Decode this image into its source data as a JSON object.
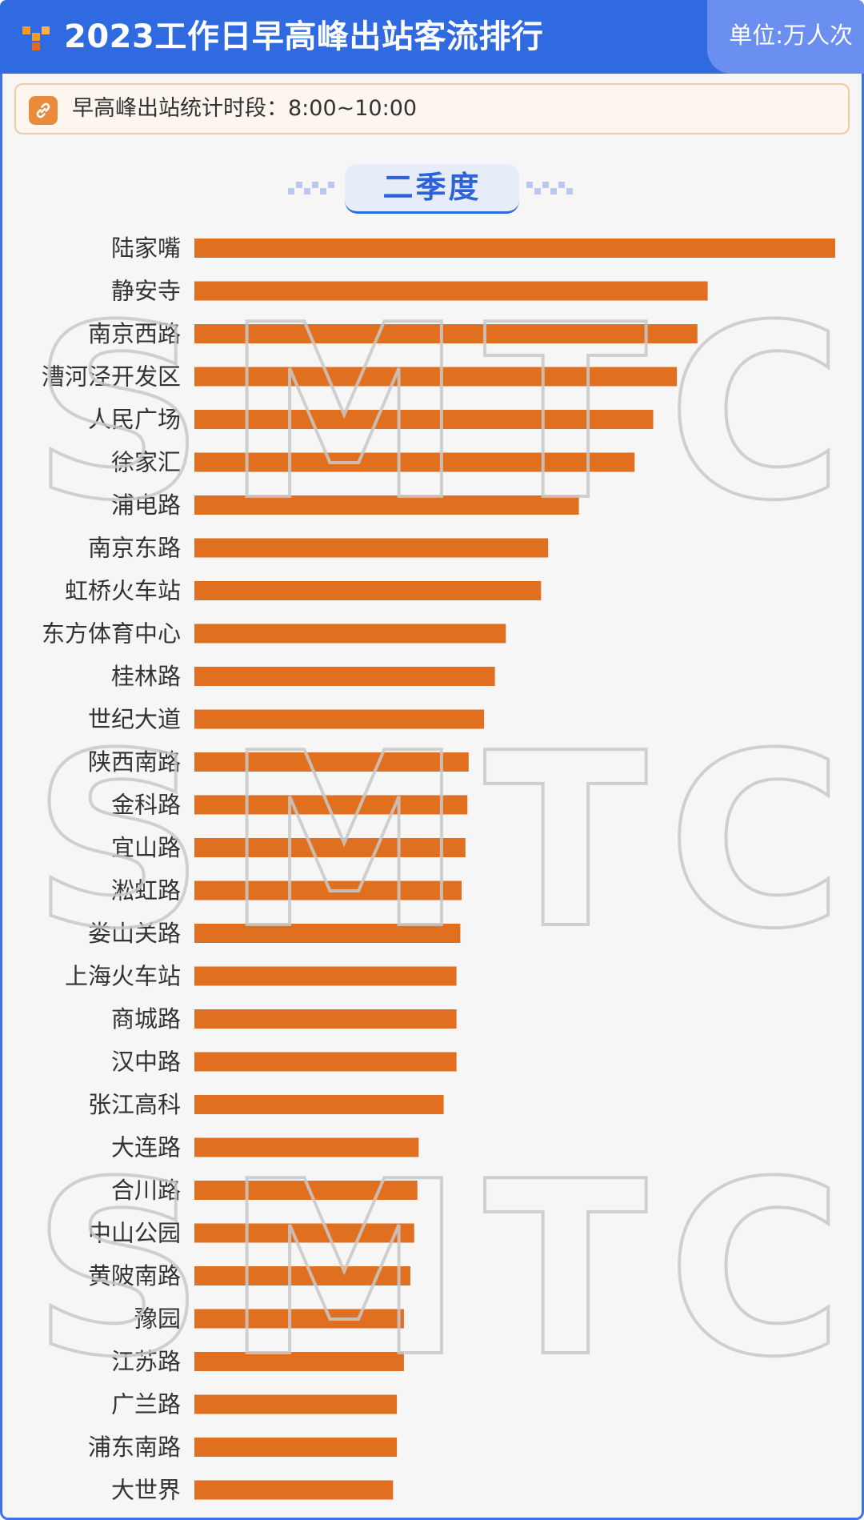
{
  "header": {
    "title": "2023工作日早高峰出站客流排行",
    "unit": "单位:万人次"
  },
  "note": {
    "text": "早高峰出站统计时段：8:00~10:00",
    "icon": "link-icon"
  },
  "tab": {
    "label": "二季度"
  },
  "watermark": "SMTCC",
  "colors": {
    "header": "#2f6ae0",
    "unit_box": "#6b8ff0",
    "bar": "#e07020",
    "note_border": "#f0c9a6",
    "tab_text": "#2d62d8"
  },
  "chart_data": {
    "type": "bar",
    "orientation": "horizontal",
    "title": "2023工作日早高峰出站客流排行",
    "categories": [
      "陆家嘴",
      "静安寺",
      "南京西路",
      "漕河泾开发区",
      "人民广场",
      "徐家汇",
      "浦电路",
      "南京东路",
      "虹桥火车站",
      "东方体育中心",
      "桂林路",
      "世纪大道",
      "陕西南路",
      "金科路",
      "宜山路",
      "淞虹路",
      "娄山关路",
      "上海火车站",
      "商城路",
      "汉中路",
      "张江高科",
      "大连路",
      "合川路",
      "中山公园",
      "黄陂南路",
      "豫园",
      "江苏路",
      "广兰路",
      "浦东南路",
      "大世界"
    ],
    "values": [
      100,
      80.1,
      78.5,
      75.3,
      71.6,
      68.7,
      60.0,
      55.2,
      54.1,
      48.6,
      46.9,
      45.2,
      42.8,
      42.6,
      42.3,
      41.7,
      41.5,
      40.9,
      40.9,
      40.9,
      38.9,
      35.0,
      34.8,
      34.3,
      33.7,
      32.7,
      32.7,
      31.6,
      31.6,
      31.0
    ],
    "xlim": [
      0,
      100
    ],
    "grid": false,
    "legend": "none",
    "data_labels": false
  }
}
